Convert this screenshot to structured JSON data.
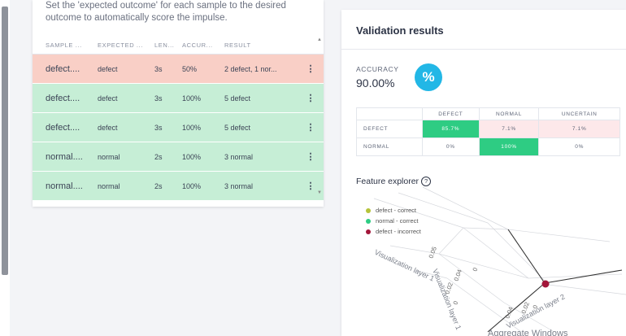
{
  "instructions": "Set the 'expected outcome' for each sample to the desired outcome to automatically score the impulse.",
  "table": {
    "headers": [
      "SAMPLE ...",
      "EXPECTED ...",
      "LEN...",
      "ACCUR...",
      "RESULT"
    ],
    "rows": [
      {
        "sample": "defect....",
        "expected": "defect",
        "length": "3s",
        "accuracy": "50%",
        "result": "2 defect, 1 nor...",
        "status": "incorrect"
      },
      {
        "sample": "defect....",
        "expected": "defect",
        "length": "3s",
        "accuracy": "100%",
        "result": "5 defect",
        "status": "correct"
      },
      {
        "sample": "defect....",
        "expected": "defect",
        "length": "3s",
        "accuracy": "100%",
        "result": "5 defect",
        "status": "correct"
      },
      {
        "sample": "normal....",
        "expected": "normal",
        "length": "2s",
        "accuracy": "100%",
        "result": "3 normal",
        "status": "correct"
      },
      {
        "sample": "normal....",
        "expected": "normal",
        "length": "2s",
        "accuracy": "100%",
        "result": "3 normal",
        "status": "correct"
      }
    ],
    "menu_glyph": "⋮"
  },
  "validation": {
    "title": "Validation results",
    "accuracy_label": "ACCURACY",
    "accuracy_value": "90.00%",
    "badge": "%",
    "matrix": {
      "columns": [
        "DEFECT",
        "NORMAL",
        "UNCERTAIN"
      ],
      "rows": [
        {
          "label": "DEFECT",
          "values": [
            "85.7%",
            "7.1%",
            "7.1%"
          ]
        },
        {
          "label": "NORMAL",
          "values": [
            "0%",
            "100%",
            "0%"
          ]
        }
      ]
    }
  },
  "feature_explorer": {
    "title": "Feature explorer",
    "help_glyph": "?",
    "legend": [
      {
        "label": "defect - correct",
        "color": "#b5c33a"
      },
      {
        "label": "normal - correct",
        "color": "#2ecc83"
      },
      {
        "label": "defect - incorrect",
        "color": "#a3163a"
      }
    ],
    "axis_labels": [
      "Visualization layer 1",
      "Visualization layer 1",
      "Visualization layer 2",
      "Aggregate Windows"
    ],
    "ticks": [
      "0.05",
      "0.04",
      "0.02",
      "0",
      "0",
      "0.04",
      "0.02",
      "0"
    ],
    "point_color": "#a3163a"
  },
  "colors": {
    "incorrect_row": "#f9cfc6",
    "correct_row": "#c6eed6",
    "accent": "#22b7e6",
    "matrix_green": "#2ecc83"
  }
}
